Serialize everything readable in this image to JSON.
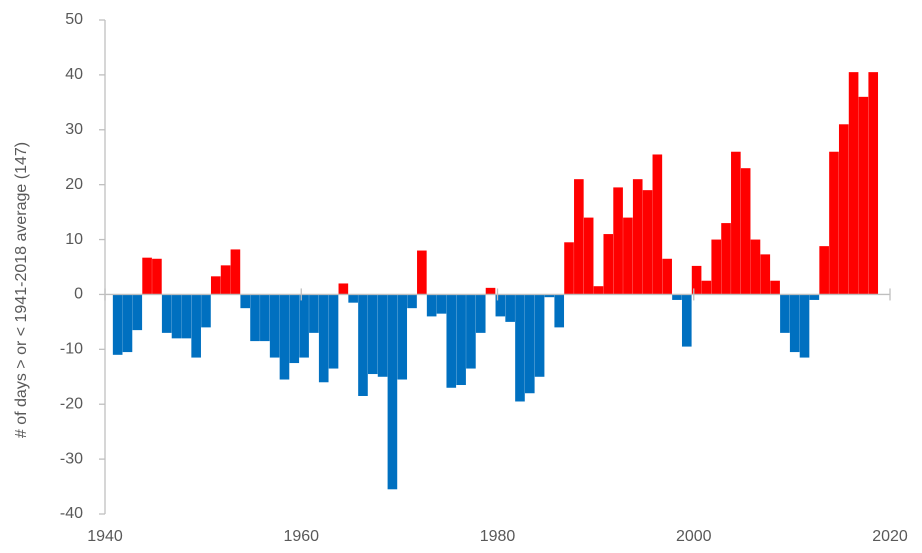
{
  "chart_data": {
    "type": "bar",
    "y_label": "# of days > or < 1941-2018 average (147)",
    "x": [
      1941,
      1942,
      1943,
      1944,
      1945,
      1946,
      1947,
      1948,
      1949,
      1950,
      1951,
      1952,
      1953,
      1954,
      1955,
      1956,
      1957,
      1958,
      1959,
      1960,
      1961,
      1962,
      1963,
      1964,
      1965,
      1966,
      1967,
      1968,
      1969,
      1970,
      1971,
      1972,
      1973,
      1974,
      1975,
      1976,
      1977,
      1978,
      1979,
      1980,
      1981,
      1982,
      1983,
      1984,
      1985,
      1986,
      1987,
      1988,
      1989,
      1990,
      1991,
      1992,
      1993,
      1994,
      1995,
      1996,
      1997,
      1998,
      1999,
      2000,
      2001,
      2002,
      2003,
      2004,
      2005,
      2006,
      2007,
      2008,
      2009,
      2010,
      2011,
      2012,
      2013,
      2014,
      2015,
      2016,
      2017,
      2018
    ],
    "values": [
      -11,
      -10.5,
      -6.5,
      6.7,
      6.5,
      -7,
      -8,
      -8,
      -11.5,
      -6,
      3.3,
      5.3,
      8.2,
      -2.5,
      -8.5,
      -8.5,
      -11.5,
      -15.5,
      -12.5,
      -11.5,
      -7,
      -16,
      -13.5,
      2,
      -1.5,
      -18.5,
      -14.5,
      -15,
      -35.5,
      -15.5,
      -2.5,
      8,
      -4,
      -3.5,
      -17,
      -16.5,
      -13.5,
      -7,
      1.2,
      -4,
      -5,
      -19.5,
      -18,
      -15,
      -0.5,
      -6,
      9.5,
      21,
      14,
      1.5,
      11,
      19.5,
      14,
      21,
      19,
      25.5,
      6.5,
      -1,
      -9.5,
      5.2,
      2.5,
      10,
      13,
      26,
      23,
      10,
      7.3,
      2.5,
      -7,
      -10.5,
      -11.5,
      -1,
      8.8,
      26,
      31,
      40.5,
      36,
      40.5
    ],
    "positive_color": "#ff0000",
    "negative_color": "#0070c0",
    "xlim": [
      1940,
      2020
    ],
    "xticks": [
      1940,
      1960,
      1980,
      2000,
      2020
    ],
    "ylim": [
      -40,
      50
    ],
    "yticks": [
      -40,
      -30,
      -20,
      -10,
      0,
      10,
      20,
      30,
      40,
      50
    ],
    "grid": false
  }
}
